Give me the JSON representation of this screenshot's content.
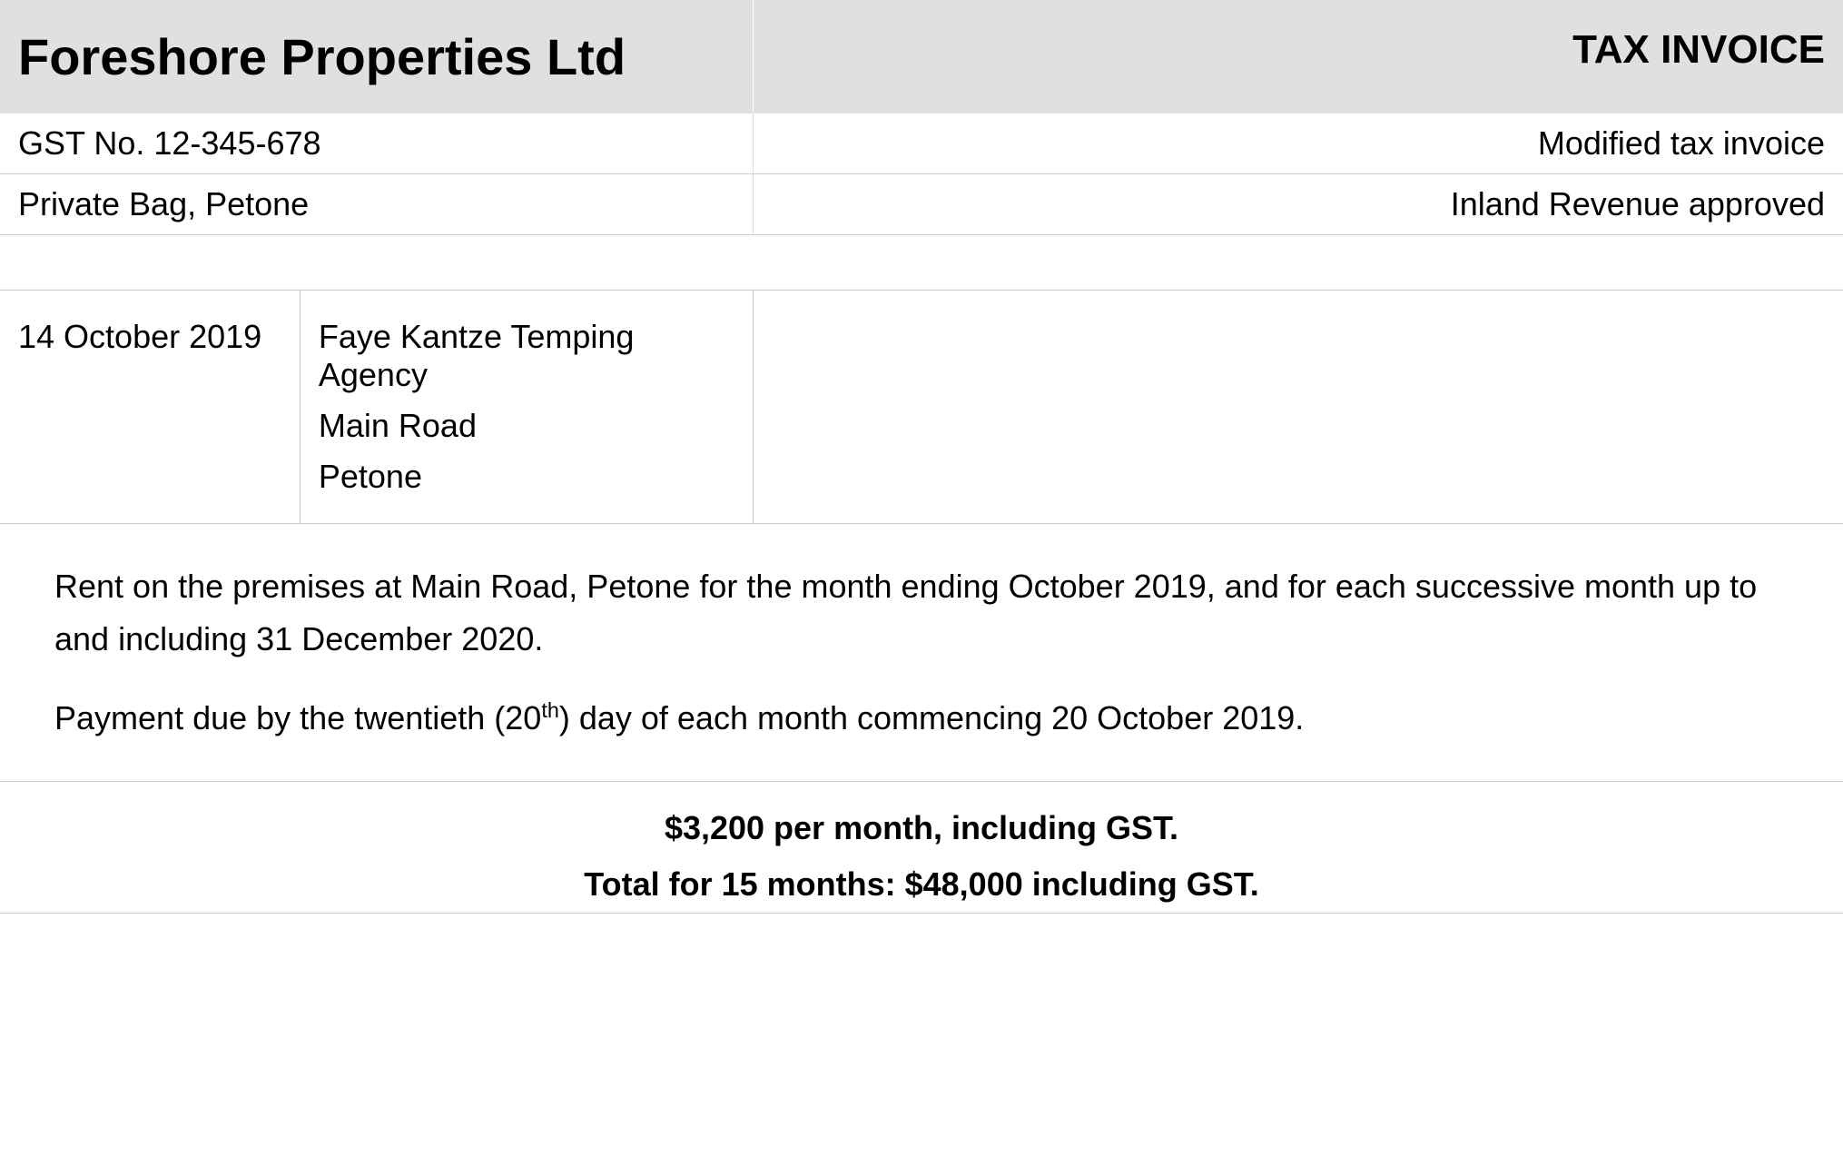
{
  "header": {
    "company_name": "Foreshore Properties Ltd",
    "tax_invoice_label": "TAX INVOICE"
  },
  "info": {
    "gst_no": "GST No. 12-345-678",
    "modified_label": "Modified tax invoice",
    "address": "Private Bag, Petone",
    "approved_label": "Inland Revenue approved"
  },
  "date": "14 October 2019",
  "recipient": {
    "name": "Faye Kantze Temping Agency",
    "street": "Main Road",
    "city": "Petone"
  },
  "description": {
    "para1": "Rent on the premises at Main Road, Petone for the month ending October 2019, and for each successive month up to and including 31 December 2020.",
    "para2_pre": "Payment due by the twentieth (20",
    "para2_sup": "th",
    "para2_post": ") day of each month commencing 20 October 2019."
  },
  "totals": {
    "monthly": "$3,200 per month, including GST.",
    "total": "Total for 15 months: $48,000 including GST."
  },
  "colors": {
    "header_bg": "#e0e0e0",
    "border": "#cccccc",
    "text": "#000000"
  }
}
